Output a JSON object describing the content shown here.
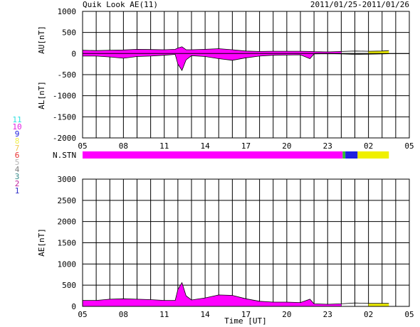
{
  "header": {
    "title": "Quik Look AE(11)",
    "date_range": "2011/01/25-2011/01/26"
  },
  "colors": {
    "station_colors": {
      "1": "#3030c8",
      "2": "#c0209c",
      "3": "#3a8c8c",
      "4": "#808080",
      "5": "#b8b8b8",
      "6": "#e83030",
      "7": "#f0c850",
      "8": "#f0f050",
      "9": "#2020e0",
      "10": "#e020e0",
      "11": "#30e0e0"
    },
    "fill_primary": "#ff00ff",
    "fill_late": "#1a2ae0",
    "fill_end": "#f0f000"
  },
  "station_legend": {
    "items": [
      {
        "label": "11",
        "color": "#30e0e0"
      },
      {
        "label": "10",
        "color": "#e020e0"
      },
      {
        "label": "9",
        "color": "#2020e0"
      },
      {
        "label": "8",
        "color": "#f0f050"
      },
      {
        "label": "7",
        "color": "#f0c850"
      },
      {
        "label": "6",
        "color": "#e83030"
      },
      {
        "label": "5",
        "color": "#b8b8b8"
      },
      {
        "label": "4",
        "color": "#808080"
      },
      {
        "label": "3",
        "color": "#3a8c8c"
      },
      {
        "label": "2",
        "color": "#c0209c"
      },
      {
        "label": "1",
        "color": "#3030c8"
      }
    ]
  },
  "chart_data": [
    {
      "type": "area",
      "panel": "AU/AL",
      "ylabel_top": "AU[nT]",
      "ylabel_bottom": "AL[nT]",
      "ylim": [
        -2000,
        1000
      ],
      "yticks": [
        1000,
        500,
        0,
        -500,
        -1000,
        -1500,
        -2000
      ],
      "xticks": [
        "05",
        "08",
        "11",
        "14",
        "17",
        "20",
        "23",
        "02",
        "05"
      ],
      "x_range_hours": [
        5,
        29
      ],
      "grid": true,
      "series": [
        {
          "name": "AU",
          "x": [
            5,
            6,
            7,
            8,
            9,
            10,
            11,
            11.8,
            12,
            12.3,
            12.6,
            13,
            14,
            15,
            16,
            17,
            18,
            19,
            20,
            21,
            21.7,
            22,
            23,
            24,
            25,
            26,
            27,
            27.5
          ],
          "values": [
            80,
            70,
            80,
            85,
            100,
            95,
            90,
            100,
            130,
            160,
            90,
            90,
            100,
            115,
            90,
            60,
            50,
            55,
            55,
            55,
            50,
            45,
            40,
            50,
            60,
            55,
            60,
            70
          ]
        },
        {
          "name": "AL",
          "x": [
            5,
            6,
            7,
            8,
            9,
            10,
            11,
            11.8,
            12,
            12.3,
            12.6,
            13,
            14,
            15,
            16,
            17,
            18,
            19,
            20,
            21,
            21.7,
            22,
            23,
            24,
            25,
            26,
            27,
            27.5
          ],
          "values": [
            -60,
            -60,
            -80,
            -110,
            -70,
            -60,
            -40,
            -20,
            -250,
            -400,
            -150,
            -50,
            -70,
            -120,
            -160,
            -100,
            -60,
            -40,
            -35,
            -30,
            -120,
            -10,
            -5,
            -10,
            -20,
            -15,
            -10,
            -5
          ]
        }
      ]
    },
    {
      "type": "bar",
      "panel": "N.STN",
      "label": "N.STN",
      "segments": [
        {
          "from": 5,
          "to": 24.1,
          "station_count": "10",
          "color": "#ff00ff"
        },
        {
          "from": 24.1,
          "to": 24.3,
          "station_count": "11",
          "color": "#30c030"
        },
        {
          "from": 24.3,
          "to": 25.2,
          "station_count": "9",
          "color": "#2020e0"
        },
        {
          "from": 25.2,
          "to": 27.5,
          "station_count": "8",
          "color": "#f0f000"
        }
      ]
    },
    {
      "type": "area",
      "panel": "AE",
      "ylabel": "AE[nT]",
      "xlabel": "Time [UT]",
      "ylim": [
        0,
        3000
      ],
      "yticks": [
        3000,
        2500,
        2000,
        1500,
        1000,
        500,
        0
      ],
      "xticks": [
        "05",
        "08",
        "11",
        "14",
        "17",
        "20",
        "23",
        "02",
        "05"
      ],
      "x_range_hours": [
        5,
        29
      ],
      "grid": true,
      "series": [
        {
          "name": "AE",
          "x": [
            5,
            6,
            7,
            8,
            9,
            10,
            11,
            11.8,
            12,
            12.3,
            12.6,
            13,
            14,
            15,
            16,
            17,
            18,
            19,
            20,
            21,
            21.7,
            22,
            23,
            24,
            25,
            26,
            27,
            27.5
          ],
          "values": [
            140,
            140,
            170,
            180,
            170,
            160,
            140,
            140,
            400,
            560,
            250,
            150,
            200,
            270,
            260,
            180,
            120,
            100,
            100,
            90,
            170,
            60,
            50,
            60,
            80,
            70,
            70,
            70
          ]
        }
      ]
    }
  ]
}
